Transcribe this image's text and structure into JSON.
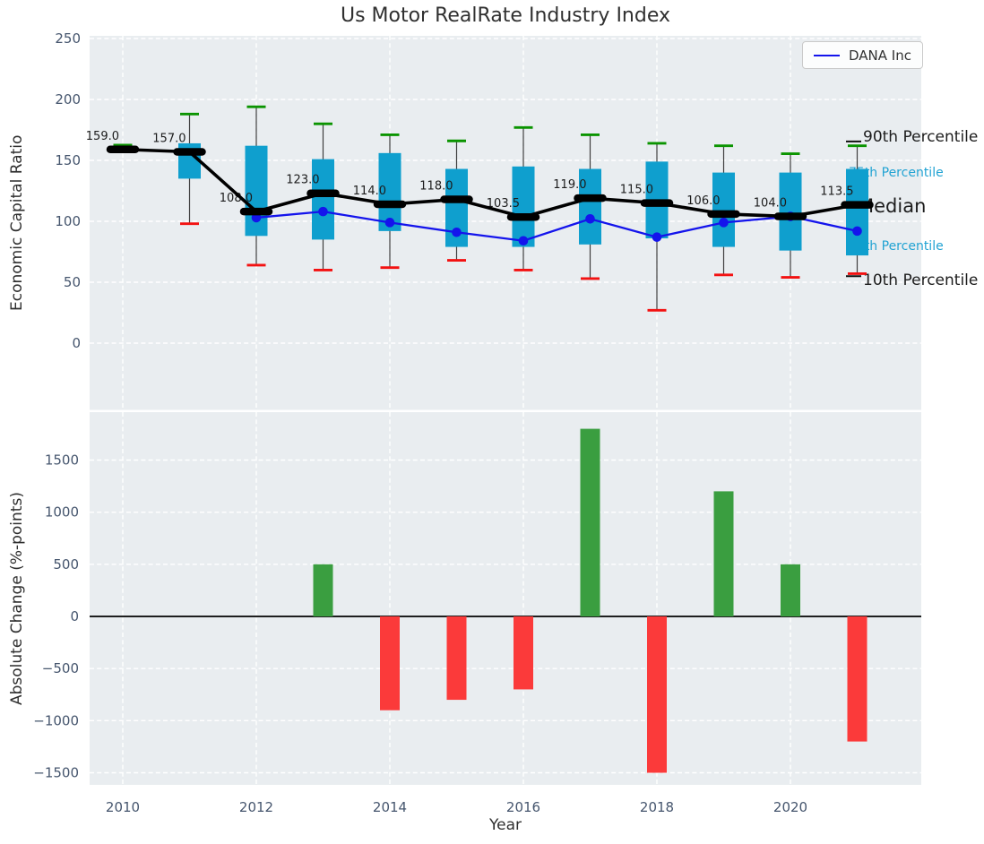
{
  "title": "Us Motor RealRate Industry Index",
  "colors": {
    "panel_bg": "#e9edf0",
    "grid": "#ffffff",
    "box_fill": "#0f9fce",
    "whisker": "#3f3f3f",
    "cap_high": "#0a9400",
    "cap_low": "#f31111",
    "median": "#000000",
    "dana_line": "#1414ec",
    "bar_positive": "#3a9e40",
    "bar_negative": "#fb3a3a",
    "zero_line": "#000000",
    "tick_label": "#46566e",
    "text_dark": "#1c1c1c",
    "cyan_label": "#22a3d3",
    "title_color": "#303030"
  },
  "chart_data": [
    {
      "type": "boxplot+line",
      "title": "Us Motor RealRate Industry Index",
      "ylabel": "Economic Capital Ratio",
      "grid": true,
      "legend": {
        "label": "DANA Inc",
        "position": "upper right"
      },
      "xlim": [
        2009.5,
        2021.97
      ],
      "ylim": [
        -55,
        252
      ],
      "yticks": [
        0,
        50,
        100,
        150,
        200,
        250
      ],
      "xticks": [
        2010,
        2012,
        2014,
        2016,
        2018,
        2020
      ],
      "boxes": [
        {
          "year": 2010,
          "p90": 162.5,
          "q3": null,
          "median": 159.0,
          "q1": null,
          "p10": null,
          "label": "159.0"
        },
        {
          "year": 2011,
          "p90": 188,
          "q3": 164,
          "median": 157.0,
          "q1": 135,
          "p10": 98,
          "label": "157.0"
        },
        {
          "year": 2012,
          "p90": 194,
          "q3": 162,
          "median": 108.0,
          "q1": 88,
          "p10": 64,
          "label": "108.0"
        },
        {
          "year": 2013,
          "p90": 180,
          "q3": 151,
          "median": 123.0,
          "q1": 85,
          "p10": 60,
          "label": "123.0"
        },
        {
          "year": 2014,
          "p90": 171,
          "q3": 156,
          "median": 114.0,
          "q1": 92,
          "p10": 62,
          "label": "114.0"
        },
        {
          "year": 2015,
          "p90": 166,
          "q3": 143,
          "median": 118.0,
          "q1": 79,
          "p10": 68,
          "label": "118.0"
        },
        {
          "year": 2016,
          "p90": 177,
          "q3": 145,
          "median": 103.5,
          "q1": 79,
          "p10": 60,
          "label": "103.5"
        },
        {
          "year": 2017,
          "p90": 171,
          "q3": 143,
          "median": 119.0,
          "q1": 81,
          "p10": 53,
          "label": "119.0"
        },
        {
          "year": 2018,
          "p90": 164,
          "q3": 149,
          "median": 115.0,
          "q1": 86,
          "p10": 27,
          "label": "115.0"
        },
        {
          "year": 2019,
          "p90": 162,
          "q3": 140,
          "median": 106.0,
          "q1": 79,
          "p10": 56,
          "label": "106.0"
        },
        {
          "year": 2020,
          "p90": 155.5,
          "q3": 140,
          "median": 104.0,
          "q1": 76,
          "p10": 54,
          "label": "104.0"
        },
        {
          "year": 2021,
          "p90": 162,
          "q3": 143,
          "median": 113.5,
          "q1": 72,
          "p10": 57,
          "label": "113.5"
        }
      ],
      "series": [
        {
          "name": "DANA Inc",
          "points": [
            [
              2012,
              103
            ],
            [
              2013,
              108
            ],
            [
              2014,
              99
            ],
            [
              2015,
              91
            ],
            [
              2016,
              84
            ],
            [
              2017,
              102
            ],
            [
              2018,
              87
            ],
            [
              2019,
              99
            ],
            [
              2020,
              104
            ],
            [
              2021,
              92
            ]
          ]
        }
      ],
      "right_annotations": [
        {
          "text": "90th Percentile",
          "value": 169,
          "style": "percentile-black",
          "dash_at": 165.5
        },
        {
          "text": "75th Percentile",
          "value": 140.5,
          "style": "percentile-cyan",
          "dash_at": null
        },
        {
          "text": "Median",
          "value": 111,
          "style": "median-big",
          "dash_at": null
        },
        {
          "text": "25th Percentile",
          "value": 80,
          "style": "percentile-cyan",
          "dash_at": null
        },
        {
          "text": "10th Percentile",
          "value": 51.5,
          "style": "percentile-black",
          "dash_at": 55
        }
      ]
    },
    {
      "type": "bar",
      "xlabel": "Year",
      "ylabel": "Absolute Change (%-points)",
      "grid": true,
      "zero_line": true,
      "xlim": [
        2009.5,
        2021.97
      ],
      "ylim": [
        -1616,
        1960
      ],
      "yticks": [
        -1500,
        -1000,
        -500,
        0,
        500,
        1000,
        1500
      ],
      "xticks": [
        2010,
        2012,
        2014,
        2016,
        2018,
        2020
      ],
      "categories": [
        2013,
        2014,
        2015,
        2016,
        2017,
        2018,
        2019,
        2020,
        2021
      ],
      "values": [
        500,
        -900,
        -800,
        -700,
        1800,
        -1500,
        1200,
        500,
        -1200
      ],
      "bars": [
        {
          "year": 2013,
          "value": 500
        },
        {
          "year": 2014,
          "value": -900
        },
        {
          "year": 2015,
          "value": -800
        },
        {
          "year": 2016,
          "value": -700
        },
        {
          "year": 2017,
          "value": 1800
        },
        {
          "year": 2018,
          "value": -1500
        },
        {
          "year": 2019,
          "value": 1200
        },
        {
          "year": 2020,
          "value": 500
        },
        {
          "year": 2021,
          "value": -1200
        }
      ]
    }
  ]
}
